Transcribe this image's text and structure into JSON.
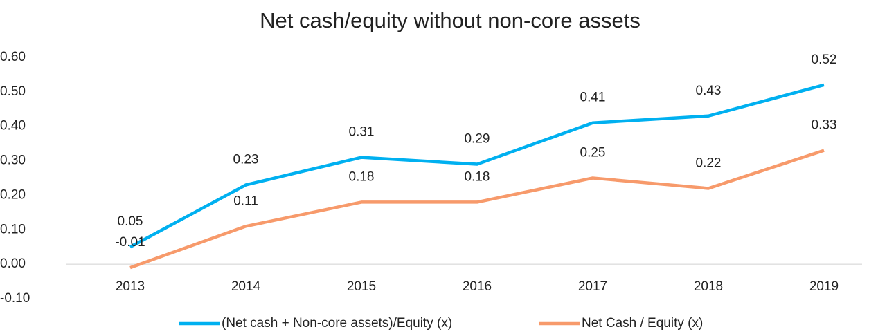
{
  "chart_data": {
    "type": "line",
    "title": "Net cash/equity without non-core assets",
    "categories": [
      "2013",
      "2014",
      "2015",
      "2016",
      "2017",
      "2018",
      "2019"
    ],
    "series": [
      {
        "name": "(Net cash + Non-core assets)/Equity (x)",
        "color": "#00b0f0",
        "values": [
          0.05,
          0.23,
          0.31,
          0.29,
          0.41,
          0.43,
          0.52
        ]
      },
      {
        "name": "Net Cash / Equity (x)",
        "color": "#f79a6b",
        "values": [
          -0.01,
          0.11,
          0.18,
          0.18,
          0.25,
          0.22,
          0.33
        ]
      }
    ],
    "ylim": [
      -0.1,
      0.6
    ],
    "yticks": [
      {
        "value": -0.1,
        "label": "-0.10"
      },
      {
        "value": 0,
        "label": "0.00"
      },
      {
        "value": 0.1,
        "label": "0.10"
      },
      {
        "value": 0.2,
        "label": "0.20"
      },
      {
        "value": 0.3,
        "label": "0.30"
      },
      {
        "value": 0.4,
        "label": "0.40"
      },
      {
        "value": 0.5,
        "label": "0.50"
      },
      {
        "value": 0.6,
        "label": "0.60"
      }
    ],
    "grid": false,
    "legend": "bottom"
  }
}
